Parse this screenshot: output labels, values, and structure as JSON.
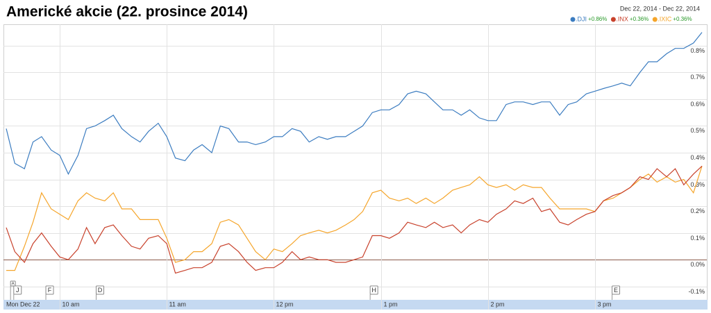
{
  "chart_data": {
    "type": "line",
    "title": "Americké akcie (22. prosince 2014)",
    "date_range": "Dec 22, 2014  -  Dec 22, 2014",
    "x": [
      9.5,
      9.58,
      9.67,
      9.75,
      9.83,
      9.92,
      10,
      10.08,
      10.17,
      10.25,
      10.33,
      10.42,
      10.5,
      10.58,
      10.67,
      10.75,
      10.83,
      10.92,
      11,
      11.08,
      11.17,
      11.25,
      11.33,
      11.42,
      11.5,
      11.58,
      11.67,
      11.75,
      11.83,
      11.92,
      12,
      12.08,
      12.17,
      12.25,
      12.33,
      12.42,
      12.5,
      12.58,
      12.67,
      12.75,
      12.83,
      12.92,
      13,
      13.08,
      13.17,
      13.25,
      13.33,
      13.42,
      13.5,
      13.58,
      13.67,
      13.75,
      13.83,
      13.92,
      14,
      14.08,
      14.17,
      14.25,
      14.33,
      14.42,
      14.5,
      14.58,
      14.67,
      14.75,
      14.83,
      14.92,
      15,
      15.08,
      15.17,
      15.25,
      15.33,
      15.42,
      15.5,
      15.58,
      15.67,
      15.75,
      15.83,
      15.92,
      16
    ],
    "series": [
      {
        "name": ".DJI",
        "change": "+0.86%",
        "color": "#3b7cc0",
        "values": [
          0.49,
          0.36,
          0.34,
          0.44,
          0.46,
          0.41,
          0.39,
          0.32,
          0.39,
          0.49,
          0.5,
          0.52,
          0.54,
          0.49,
          0.46,
          0.44,
          0.48,
          0.51,
          0.46,
          0.38,
          0.37,
          0.41,
          0.43,
          0.4,
          0.5,
          0.49,
          0.44,
          0.44,
          0.43,
          0.44,
          0.46,
          0.46,
          0.49,
          0.48,
          0.44,
          0.46,
          0.45,
          0.46,
          0.46,
          0.48,
          0.5,
          0.55,
          0.56,
          0.56,
          0.58,
          0.62,
          0.63,
          0.62,
          0.59,
          0.56,
          0.56,
          0.54,
          0.56,
          0.53,
          0.52,
          0.52,
          0.58,
          0.59,
          0.59,
          0.58,
          0.59,
          0.59,
          0.54,
          0.58,
          0.59,
          0.62,
          0.63,
          0.64,
          0.65,
          0.66,
          0.65,
          0.7,
          0.74,
          0.74,
          0.77,
          0.79,
          0.79,
          0.81,
          0.85
        ]
      },
      {
        "name": ".INX",
        "change": "+0.36%",
        "color": "#c8412b",
        "values": [
          0.12,
          0.03,
          -0.01,
          0.06,
          0.1,
          0.05,
          0.01,
          0.0,
          0.04,
          0.12,
          0.06,
          0.12,
          0.13,
          0.09,
          0.05,
          0.04,
          0.08,
          0.09,
          0.06,
          -0.05,
          -0.04,
          -0.03,
          -0.03,
          -0.01,
          0.05,
          0.06,
          0.03,
          -0.01,
          -0.04,
          -0.03,
          -0.03,
          -0.01,
          0.03,
          0.0,
          0.01,
          0.0,
          0.0,
          -0.01,
          -0.01,
          0.0,
          0.01,
          0.09,
          0.09,
          0.08,
          0.1,
          0.14,
          0.13,
          0.12,
          0.14,
          0.12,
          0.13,
          0.1,
          0.13,
          0.15,
          0.14,
          0.17,
          0.19,
          0.22,
          0.21,
          0.23,
          0.18,
          0.19,
          0.14,
          0.13,
          0.15,
          0.17,
          0.18,
          0.22,
          0.24,
          0.25,
          0.27,
          0.31,
          0.3,
          0.34,
          0.31,
          0.34,
          0.28,
          0.32,
          0.35
        ]
      },
      {
        "name": ".IXIC",
        "change": "+0.36%",
        "color": "#f5a52a",
        "values": [
          -0.04,
          -0.04,
          0.05,
          0.14,
          0.25,
          0.19,
          0.17,
          0.15,
          0.22,
          0.25,
          0.23,
          0.22,
          0.25,
          0.19,
          0.19,
          0.15,
          0.15,
          0.15,
          0.08,
          -0.01,
          0.0,
          0.03,
          0.03,
          0.06,
          0.14,
          0.15,
          0.13,
          0.08,
          0.03,
          0.0,
          0.04,
          0.03,
          0.06,
          0.09,
          0.1,
          0.11,
          0.1,
          0.11,
          0.13,
          0.15,
          0.18,
          0.25,
          0.26,
          0.23,
          0.22,
          0.23,
          0.21,
          0.23,
          0.21,
          0.23,
          0.26,
          0.27,
          0.28,
          0.31,
          0.28,
          0.27,
          0.28,
          0.26,
          0.28,
          0.27,
          0.27,
          0.23,
          0.19,
          0.19,
          0.19,
          0.19,
          0.18,
          0.22,
          0.23,
          0.25,
          0.27,
          0.3,
          0.32,
          0.29,
          0.31,
          0.29,
          0.3,
          0.25,
          0.35
        ]
      }
    ],
    "xlim": [
      9.5,
      16
    ],
    "xticks": [
      {
        "value": 9.5,
        "label": "Mon Dec 22"
      },
      {
        "value": 10,
        "label": "10 am"
      },
      {
        "value": 11,
        "label": "11 am"
      },
      {
        "value": 12,
        "label": "12 pm"
      },
      {
        "value": 13,
        "label": "1 pm"
      },
      {
        "value": 14,
        "label": "2 pm"
      },
      {
        "value": 15,
        "label": "3 pm"
      }
    ],
    "ylim": [
      -0.15,
      0.88
    ],
    "yticks": [
      {
        "value": -0.1,
        "label": "-0.1%"
      },
      {
        "value": 0,
        "label": "0.0%"
      },
      {
        "value": 0.1,
        "label": "0.1%"
      },
      {
        "value": 0.2,
        "label": "0.2%"
      },
      {
        "value": 0.3,
        "label": "0.3%"
      },
      {
        "value": 0.4,
        "label": "0.4%"
      },
      {
        "value": 0.5,
        "label": "0.5%"
      },
      {
        "value": 0.6,
        "label": "0.6%"
      },
      {
        "value": 0.7,
        "label": "0.7%"
      },
      {
        "value": 0.8,
        "label": "0.8%"
      }
    ],
    "flags": [
      {
        "label": "A",
        "x": 9.54
      },
      {
        "label": "J",
        "x": 9.57
      },
      {
        "label": "F",
        "x": 9.87
      },
      {
        "label": "D",
        "x": 10.34
      },
      {
        "label": "H",
        "x": 12.9
      },
      {
        "label": "E",
        "x": 15.16
      }
    ],
    "grid": true
  }
}
